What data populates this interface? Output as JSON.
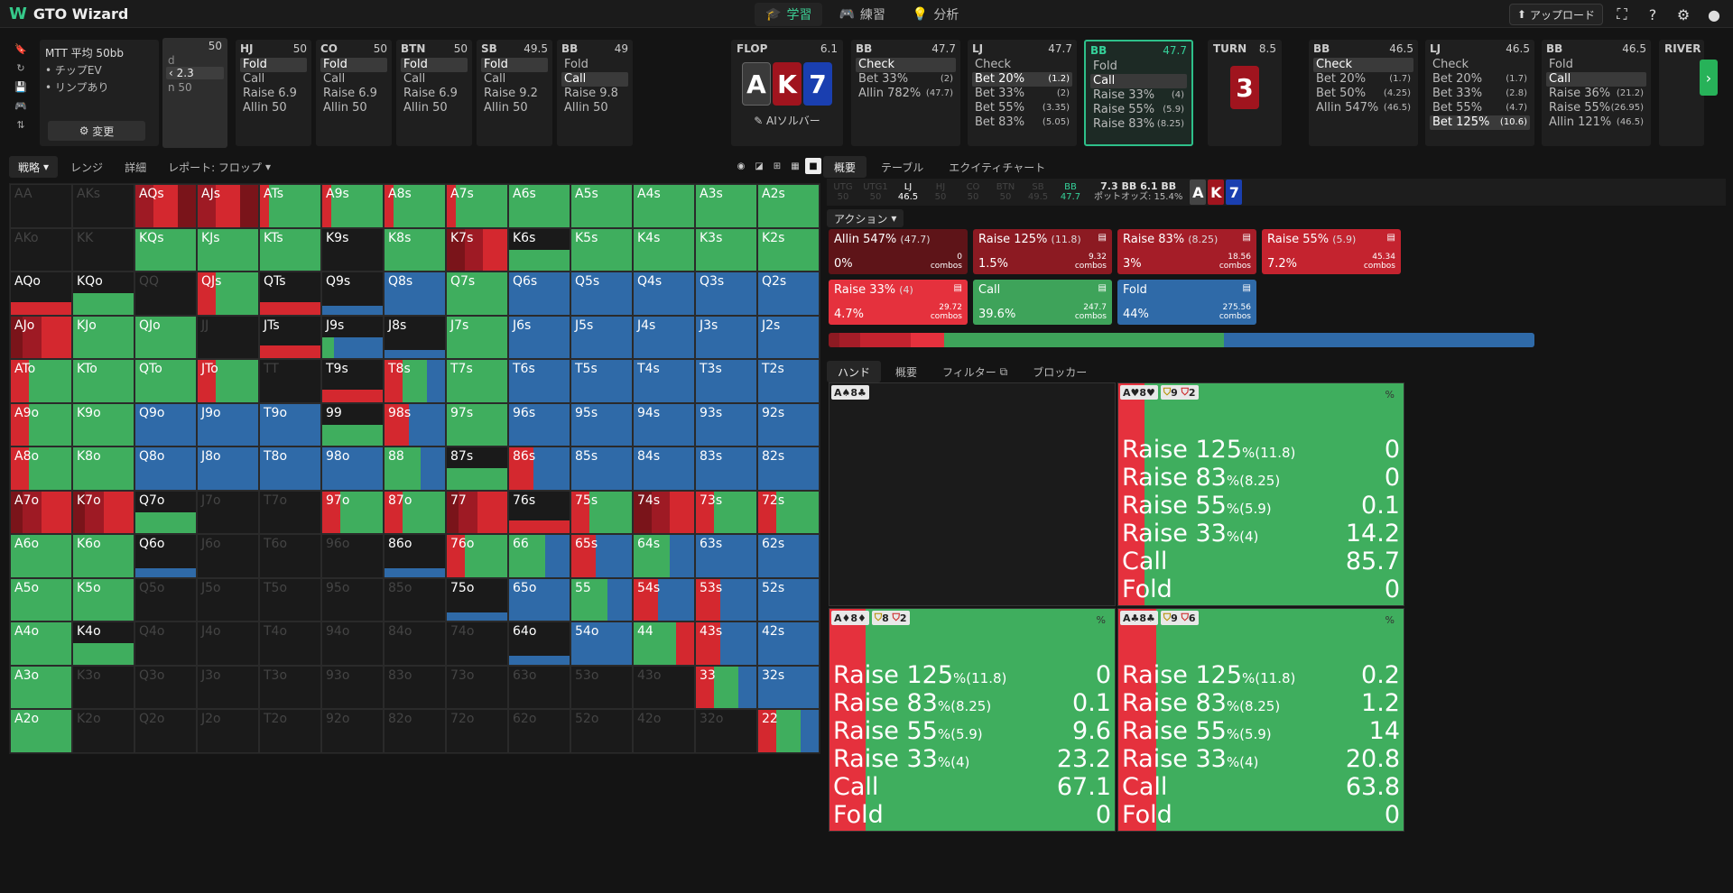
{
  "app": {
    "title": "GTO Wizard"
  },
  "nav": {
    "tabs": [
      {
        "label": "学習",
        "icon": "study-icon"
      },
      {
        "label": "練習",
        "icon": "gamepad-icon"
      },
      {
        "label": "分析",
        "icon": "bulb-icon"
      }
    ]
  },
  "topright": {
    "upload": "アップロード"
  },
  "info": {
    "title": "MTT 平均 50bb",
    "items": [
      "チップEV",
      "リンプあり"
    ],
    "change": "変更"
  },
  "hidden": {
    "stack": "50",
    "letter": "d",
    "raise": "2.3",
    "allin": "n 50"
  },
  "players": [
    {
      "pos": "HJ",
      "stack": "50",
      "actions": [
        {
          "l": "Fold",
          "s": "",
          "sel": true
        },
        {
          "l": "Call"
        },
        {
          "l": "Raise 6.9"
        },
        {
          "l": "Allin 50"
        }
      ]
    },
    {
      "pos": "CO",
      "stack": "50",
      "actions": [
        {
          "l": "Fold",
          "sel": true
        },
        {
          "l": "Call"
        },
        {
          "l": "Raise 6.9"
        },
        {
          "l": "Allin 50"
        }
      ]
    },
    {
      "pos": "BTN",
      "stack": "50",
      "actions": [
        {
          "l": "Fold",
          "sel": true
        },
        {
          "l": "Call"
        },
        {
          "l": "Raise 6.9"
        },
        {
          "l": "Allin 50"
        }
      ]
    },
    {
      "pos": "SB",
      "stack": "49.5",
      "actions": [
        {
          "l": "Fold",
          "sel": true
        },
        {
          "l": "Call"
        },
        {
          "l": "Raise 9.2"
        },
        {
          "l": "Allin 50"
        }
      ]
    },
    {
      "pos": "BB",
      "stack": "49",
      "actions": [
        {
          "l": "Fold"
        },
        {
          "l": "Call",
          "sel": true
        },
        {
          "l": "Raise 9.8"
        },
        {
          "l": "Allin 50"
        }
      ]
    }
  ],
  "flop": {
    "label": "FLOP",
    "pot": "6.1",
    "cards": [
      "A",
      "K",
      "7"
    ],
    "ai": "AIソルバー"
  },
  "postflop": [
    {
      "pos": "BB",
      "stack": "47.7",
      "actions": [
        {
          "l": "Check",
          "sel": true
        },
        {
          "l": "Bet 33%",
          "s": "(2)"
        },
        {
          "l": "Allin 782%",
          "s": "(47.7)"
        }
      ]
    },
    {
      "pos": "LJ",
      "stack": "47.7",
      "actions": [
        {
          "l": "Check"
        },
        {
          "l": "Bet 20%",
          "s": "(1.2)",
          "sel": true
        },
        {
          "l": "Bet 33%",
          "s": "(2)"
        },
        {
          "l": "Bet 55%",
          "s": "(3.35)"
        },
        {
          "l": "Bet 83%",
          "s": "(5.05)"
        }
      ]
    },
    {
      "pos": "BB",
      "stack": "47.7",
      "active": true,
      "actions": [
        {
          "l": "Fold"
        },
        {
          "l": "Call",
          "sel": true
        },
        {
          "l": "Raise 33%",
          "s": "(4)"
        },
        {
          "l": "Raise 55%",
          "s": "(5.9)"
        },
        {
          "l": "Raise 83%",
          "s": "(8.25)"
        }
      ]
    }
  ],
  "turn": {
    "label": "TURN",
    "pot": "8.5",
    "card": "3"
  },
  "turnp": [
    {
      "pos": "BB",
      "stack": "46.5",
      "actions": [
        {
          "l": "Check",
          "sel": true
        },
        {
          "l": "Bet 20%",
          "s": "(1.7)"
        },
        {
          "l": "Bet 50%",
          "s": "(4.25)"
        },
        {
          "l": "Allin 547%",
          "s": "(46.5)"
        }
      ]
    },
    {
      "pos": "LJ",
      "stack": "46.5",
      "actions": [
        {
          "l": "Check"
        },
        {
          "l": "Bet 20%",
          "s": "(1.7)"
        },
        {
          "l": "Bet 33%",
          "s": "(2.8)"
        },
        {
          "l": "Bet 55%",
          "s": "(4.7)"
        },
        {
          "l": "Bet 125%",
          "s": "(10.6)",
          "sel": true
        }
      ]
    },
    {
      "pos": "BB",
      "stack": "46.5",
      "actions": [
        {
          "l": "Fold"
        },
        {
          "l": "Call",
          "sel": true
        },
        {
          "l": "Raise 36%",
          "s": "(21.2)"
        },
        {
          "l": "Raise 55%",
          "s": "(26.95)"
        },
        {
          "l": "Allin 121%",
          "s": "(46.5)"
        }
      ]
    }
  ],
  "river": {
    "label": "RIVER"
  },
  "lefttabs": {
    "strategy": "戦略",
    "range": "レンジ",
    "detail": "詳細",
    "report": "レポート: フロップ"
  },
  "righttabs": {
    "overview": "概要",
    "table": "テーブル",
    "equity": "エクイティチャート"
  },
  "positions": [
    {
      "p": "UTG",
      "s": "50"
    },
    {
      "p": "UTG1",
      "s": "50"
    },
    {
      "p": "LJ",
      "s": "46.5",
      "on": true
    },
    {
      "p": "HJ",
      "s": "50"
    },
    {
      "p": "CO",
      "s": "50"
    },
    {
      "p": "BTN",
      "s": "50"
    },
    {
      "p": "SB",
      "s": "49.5"
    },
    {
      "p": "BB",
      "s": "47.7",
      "cur": true
    }
  ],
  "pot": {
    "line1": "7.3 BB  6.1 BB",
    "line2": "ポットオッズ:  15.4%"
  },
  "actionDropdown": "アクション",
  "actionsSummary": [
    {
      "name": "Allin 547%",
      "size": "(47.7)",
      "pct": "0%",
      "combos": "0",
      "color": "#5e1418"
    },
    {
      "name": "Raise 125%",
      "size": "(11.8)",
      "pct": "1.5%",
      "combos": "9.32",
      "color": "#8c1a22"
    },
    {
      "name": "Raise 83%",
      "size": "(8.25)",
      "pct": "3%",
      "combos": "18.56",
      "color": "#a51d28"
    },
    {
      "name": "Raise 55%",
      "size": "(5.9)",
      "pct": "7.2%",
      "combos": "45.34",
      "color": "#c4232f"
    },
    {
      "name": "Raise 33%",
      "size": "(4)",
      "pct": "4.7%",
      "combos": "29.72",
      "color": "#e5313d"
    },
    {
      "name": "Call",
      "size": "",
      "pct": "39.6%",
      "combos": "247.7",
      "color": "#3ea35a"
    },
    {
      "name": "Fold",
      "size": "",
      "pct": "44%",
      "combos": "275.56",
      "color": "#2f6aa8"
    }
  ],
  "combosLabel": "combos",
  "handtabs": {
    "hand": "ハンド",
    "overview": "概要",
    "filter": "フィルター",
    "blocker": "ブロッカー"
  },
  "hands": [
    {
      "cards": "A♠8♣",
      "empty": true
    },
    {
      "cards": "A♥8♥",
      "b1": "9",
      "b2": "2",
      "rows": [
        [
          "Raise 125",
          "%(11.8)",
          "0"
        ],
        [
          "Raise 83",
          "%(8.25)",
          "0"
        ],
        [
          "Raise 55",
          "%(5.9)",
          "0.1"
        ],
        [
          "Raise 33",
          "%(4)",
          "14.2"
        ],
        [
          "Call",
          "",
          "85.7"
        ],
        [
          "Fold",
          "",
          "0"
        ]
      ],
      "raise": 14.3
    },
    {
      "cards": "A♦8♦",
      "b1": "8",
      "b2": "2",
      "rows": [
        [
          "Raise 125",
          "%(11.8)",
          "0"
        ],
        [
          "Raise 83",
          "%(8.25)",
          "0.1"
        ],
        [
          "Raise 55",
          "%(5.9)",
          "9.6"
        ],
        [
          "Raise 33",
          "%(4)",
          "23.2"
        ],
        [
          "Call",
          "",
          "67.1"
        ],
        [
          "Fold",
          "",
          "0"
        ]
      ],
      "raise": 32.9
    },
    {
      "cards": "A♣8♣",
      "b1": "9",
      "b2": "6",
      "rows": [
        [
          "Raise 125",
          "%(11.8)",
          "0.2"
        ],
        [
          "Raise 83",
          "%(8.25)",
          "1.2"
        ],
        [
          "Raise 55",
          "%(5.9)",
          "14"
        ],
        [
          "Raise 33",
          "%(4)",
          "20.8"
        ],
        [
          "Call",
          "",
          "63.8"
        ],
        [
          "Fold",
          "",
          "0"
        ]
      ],
      "raise": 36.2
    }
  ],
  "matrix": [
    [
      "AA:e",
      "AKs:e",
      "AQs:r,r2",
      "AJs:r,r2",
      "ATs:r1g",
      "A9s:r1g",
      "A8s:r1g",
      "A7s:r1g",
      "A6s:g",
      "A5s:g",
      "A4s:g",
      "A3s:g",
      "A2s:g"
    ],
    [
      "AKo:e",
      "KK:e",
      "KQs:g",
      "KJs:g",
      "KTs:g",
      "K9s:k",
      "K8s:g",
      "K7s:r2",
      "K6s:kg",
      "K5s:g",
      "K4s:g",
      "K3s:g",
      "K2s:g"
    ],
    [
      "AQo:kr",
      "KQo:kg",
      "QQ:e",
      "QJs:rg",
      "QTs:kr",
      "Q9s:kb",
      "Q8s:b",
      "Q7s:g",
      "Q6s:b",
      "Q5s:b",
      "Q4s:b",
      "Q3s:b",
      "Q2s:b"
    ],
    [
      "AJo:r",
      "KJo:g",
      "QJo:g",
      "JJ:e",
      "JTs:kr",
      "J9s:kgb",
      "J8s:kb",
      "J7s:g",
      "J6s:b",
      "J5s:b",
      "J4s:b",
      "J3s:b",
      "J2s:b"
    ],
    [
      "ATo:rg",
      "KTo:g",
      "QTo:g",
      "JTo:rg",
      "TT:e",
      "T9s:kr",
      "T8s:rgb",
      "T7s:g",
      "T6s:b",
      "T5s:b",
      "T4s:b",
      "T3s:b",
      "T2s:b"
    ],
    [
      "A9o:rg",
      "K9o:g",
      "Q9o:b",
      "J9o:b",
      "T9o:b",
      "99:kg",
      "98s:rb",
      "97s:g",
      "96s:b",
      "95s:b",
      "94s:b",
      "93s:b",
      "92s:b"
    ],
    [
      "A8o:rg",
      "K8o:g",
      "Q8o:b",
      "J8o:b",
      "T8o:b",
      "98o:b",
      "88:gb",
      "87s:kg",
      "86s:rb",
      "85s:b",
      "84s:b",
      "83s:b",
      "82s:b"
    ],
    [
      "A7o:r",
      "K7o:r",
      "Q7o:kg",
      "J7o:e",
      "T7o:e",
      "97o:rg",
      "87o:rg",
      "77:r",
      "76s:kr",
      "75s:rg",
      "74s:r2",
      "73s:rg",
      "72s:rg"
    ],
    [
      "A6o:g",
      "K6o:g",
      "Q6o:kb",
      "J6o:e",
      "T6o:e",
      "96o:e",
      "86o:kb",
      "76o:rg",
      "66:gb",
      "65s:rb",
      "64s:gb",
      "63s:b",
      "62s:b"
    ],
    [
      "A5o:g",
      "K5o:g",
      "Q5o:e",
      "J5o:e",
      "T5o:e",
      "95o:e",
      "85o:e",
      "75o:kb",
      "65o:b",
      "55:gb",
      "54s:rb",
      "53s:rb",
      "52s:b"
    ],
    [
      "A4o:g",
      "K4o:kg",
      "Q4o:e",
      "J4o:e",
      "T4o:e",
      "94o:e",
      "84o:e",
      "74o:e",
      "64o:kb",
      "54o:b",
      "44:gr",
      "43s:rb",
      "42s:b"
    ],
    [
      "A3o:g",
      "K3o:e",
      "Q3o:e",
      "J3o:e",
      "T3o:e",
      "93o:e",
      "83o:e",
      "73o:e",
      "63o:e",
      "53o:e",
      "43o:e",
      "33:rgb",
      "32s:b"
    ],
    [
      "A2o:g",
      "K2o:e",
      "Q2o:e",
      "J2o:e",
      "T2o:e",
      "92o:e",
      "82o:e",
      "72o:e",
      "62o:e",
      "52o:e",
      "42o:e",
      "32o:e",
      "22:rgb"
    ]
  ]
}
